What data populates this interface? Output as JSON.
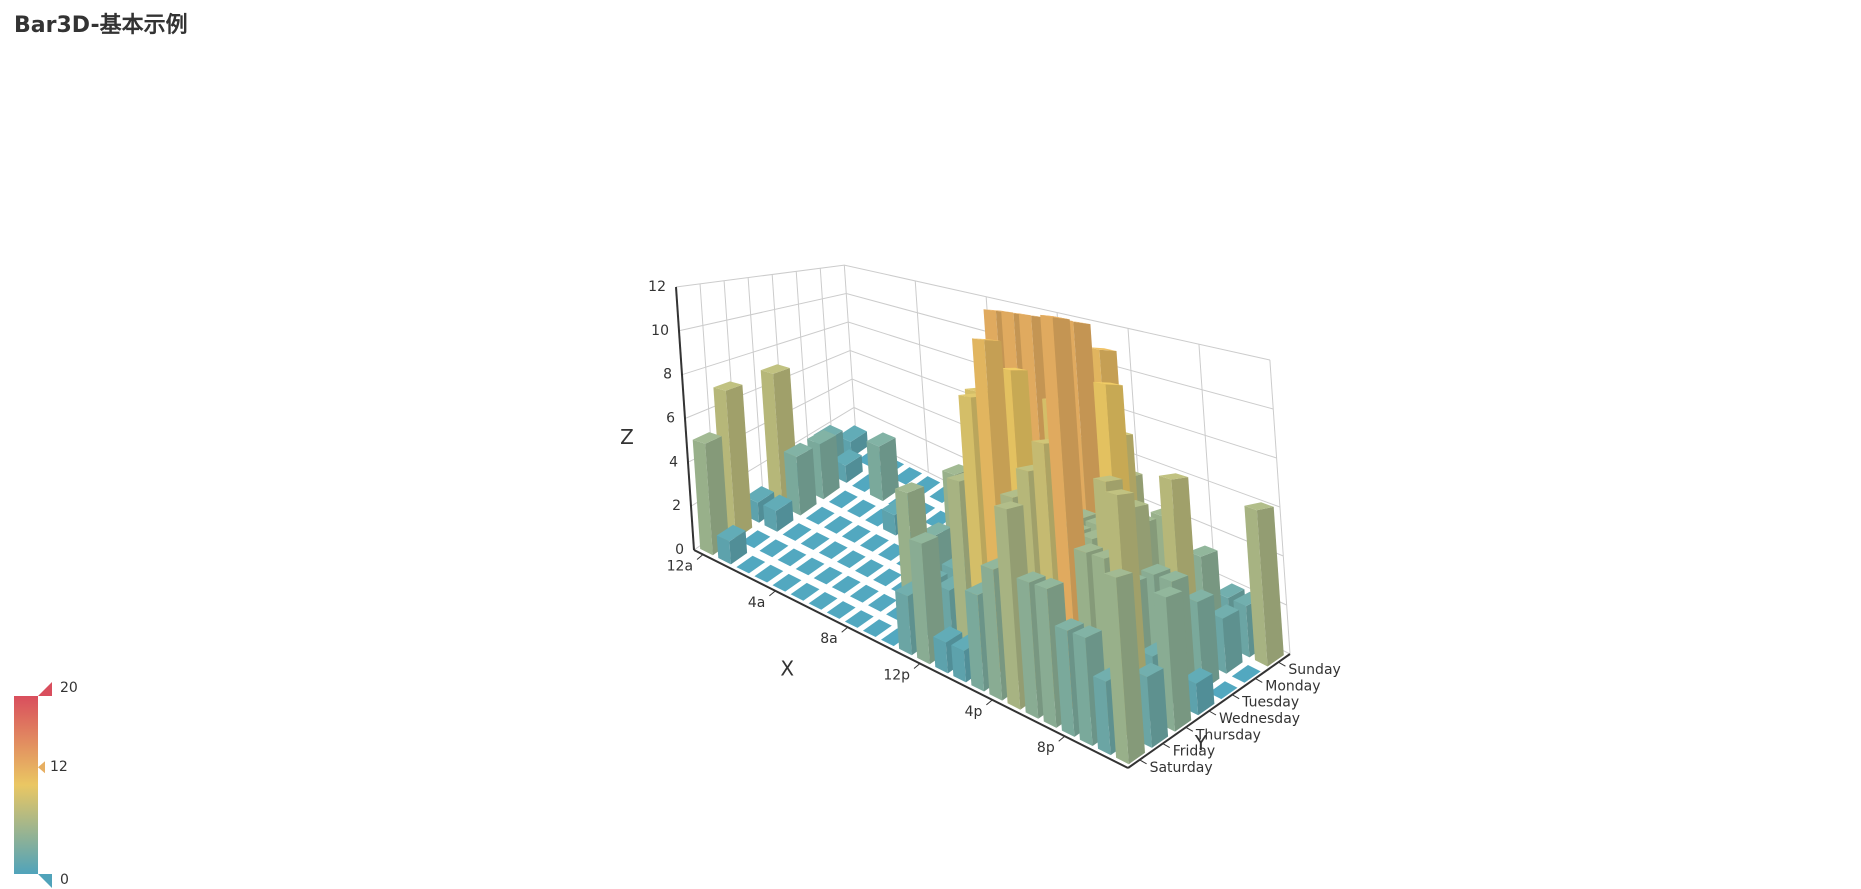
{
  "chart_data": {
    "type": "bar3d",
    "title": "Bar3D-基本示例",
    "x_name": "X",
    "y_name": "Y",
    "z_name": "Z",
    "x_categories": [
      "12a",
      null,
      null,
      null,
      "4a",
      null,
      null,
      null,
      "8a",
      null,
      null,
      null,
      "12p",
      null,
      null,
      null,
      "4p",
      null,
      null,
      null,
      "8p",
      null,
      null,
      null
    ],
    "y_categories": [
      "Saturday",
      "Friday",
      "Thursday",
      "Wednesday",
      "Tuesday",
      "Monday",
      "Sunday"
    ],
    "values": [
      [
        5,
        1,
        0,
        0,
        0,
        0,
        0,
        0,
        0,
        0,
        0,
        2,
        4,
        1,
        1,
        3,
        4,
        6,
        4,
        4,
        3,
        3,
        2,
        5
      ],
      [
        7,
        0,
        0,
        0,
        0,
        0,
        0,
        0,
        0,
        0,
        5,
        2,
        2,
        6,
        9,
        11,
        6,
        7,
        8,
        12,
        5,
        5,
        7,
        2
      ],
      [
        1,
        1,
        0,
        0,
        0,
        0,
        0,
        0,
        0,
        0,
        3,
        2,
        1,
        9,
        8,
        10,
        6,
        5,
        5,
        5,
        7,
        4,
        2,
        4
      ],
      [
        7,
        3,
        0,
        0,
        0,
        0,
        0,
        0,
        1,
        0,
        5,
        4,
        7,
        12,
        12,
        12,
        9,
        5,
        5,
        10,
        6,
        4,
        4,
        1
      ],
      [
        1,
        3,
        0,
        0,
        0,
        1,
        0,
        0,
        0,
        2,
        4,
        4,
        2,
        4,
        4,
        12,
        12,
        1,
        8,
        5,
        3,
        7,
        3,
        0
      ],
      [
        2,
        1,
        0,
        3,
        0,
        0,
        0,
        0,
        2,
        0,
        4,
        1,
        5,
        10,
        5,
        7,
        11,
        6,
        0,
        5,
        3,
        4,
        2,
        0
      ],
      [
        1,
        0,
        0,
        0,
        0,
        0,
        0,
        0,
        0,
        0,
        1,
        0,
        2,
        1,
        3,
        4,
        0,
        0,
        0,
        0,
        1,
        2,
        2,
        6
      ]
    ],
    "zlim": [
      0,
      12
    ],
    "zticks": [
      0,
      2,
      4,
      6,
      8,
      10,
      12
    ],
    "grid": true,
    "visual_map": {
      "min": 0,
      "max": 20,
      "indicator": 12,
      "colors": [
        "#50a3ba",
        "#eac763",
        "#d94e5d"
      ]
    }
  }
}
